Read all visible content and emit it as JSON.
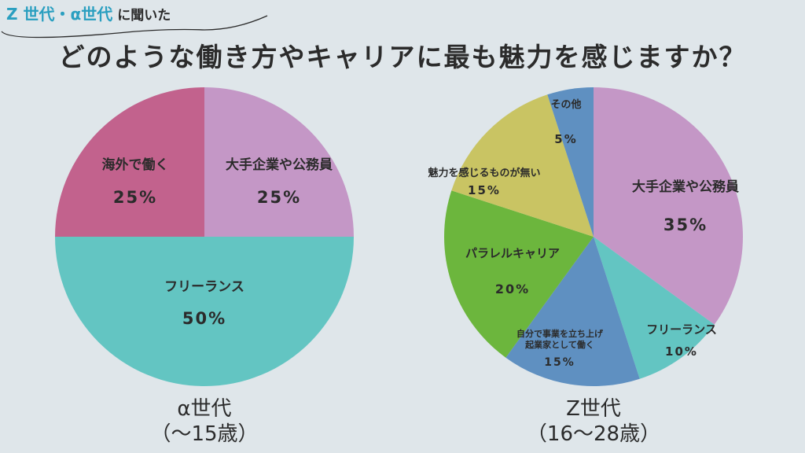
{
  "header": {
    "kicker_accent": "Z 世代・α世代",
    "kicker_rest": "に聞いた",
    "question": "どのような働き方やキャリアに最も魅力を感じますか？"
  },
  "chart_data": [
    {
      "type": "pie",
      "title": "α世代",
      "subtitle": "（〜15歳）",
      "slices": [
        {
          "label": "大手企業や公務員",
          "value": 25,
          "value_label": "25%",
          "color": "#c497c6"
        },
        {
          "label": "フリーランス",
          "value": 50,
          "value_label": "50%",
          "color": "#63c5c2"
        },
        {
          "label": "海外で働く",
          "value": 25,
          "value_label": "25%",
          "color": "#c2628d"
        }
      ]
    },
    {
      "type": "pie",
      "title": "Z世代",
      "subtitle": "（16〜28歳）",
      "slices": [
        {
          "label": "大手企業や公務員",
          "value": 35,
          "value_label": "35%",
          "color": "#c497c6"
        },
        {
          "label": "フリーランス",
          "value": 10,
          "value_label": "10%",
          "color": "#63c5c2"
        },
        {
          "label": "自分で事業を立ち上げ\n起業家として働く",
          "value": 15,
          "value_label": "15%",
          "color": "#5f90c1"
        },
        {
          "label": "パラレルキャリア",
          "value": 20,
          "value_label": "20%",
          "color": "#6cb63d"
        },
        {
          "label": "魅力を感じるものが無い",
          "value": 15,
          "value_label": "15%",
          "color": "#c9c463"
        },
        {
          "label": "その他",
          "value": 5,
          "value_label": "5%",
          "color": "#5f90c1"
        }
      ]
    }
  ]
}
